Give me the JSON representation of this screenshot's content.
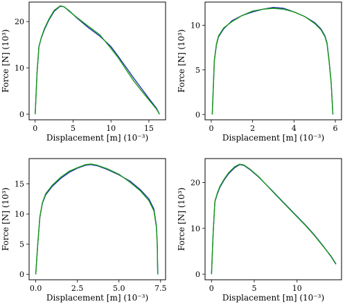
{
  "colors": {
    "series_1": "#1f2fb0",
    "series_2": "#1a9c1a"
  },
  "chart_data": [
    {
      "type": "line",
      "xlabel": "Displacement [m] (10⁻³)",
      "ylabel": "Force [N] (10³)",
      "xlim": [
        -0.8,
        17.2
      ],
      "ylim": [
        -1.2,
        24.2
      ],
      "xticks": [
        0,
        5,
        10,
        15
      ],
      "xtick_labels": [
        "0",
        "5",
        "10",
        "15"
      ],
      "yticks": [
        0,
        10,
        20
      ],
      "ytick_labels": [
        "0",
        "10",
        "20"
      ],
      "series": [
        {
          "values": [
            [
              0,
              0
            ],
            [
              0.25,
              9
            ],
            [
              0.5,
              14.6
            ],
            [
              0.8,
              16.4
            ],
            [
              1.2,
              18.2
            ],
            [
              1.8,
              20.3
            ],
            [
              2.5,
              22.2
            ],
            [
              3.3,
              23.3
            ],
            [
              3.8,
              23.2
            ],
            [
              4.5,
              22.3
            ],
            [
              5.5,
              20.8
            ],
            [
              7,
              18.7
            ],
            [
              8.5,
              16.9
            ],
            [
              10,
              14.6
            ],
            [
              11,
              12.4
            ],
            [
              12,
              10.1
            ],
            [
              13,
              7.8
            ],
            [
              14,
              5.6
            ],
            [
              15,
              3.4
            ],
            [
              16,
              1.3
            ],
            [
              16.4,
              0
            ]
          ]
        },
        {
          "values": [
            [
              0,
              0
            ],
            [
              0.25,
              9
            ],
            [
              0.5,
              14.5
            ],
            [
              0.8,
              16.5
            ],
            [
              1.2,
              18.4
            ],
            [
              1.8,
              20.5
            ],
            [
              2.5,
              22.4
            ],
            [
              3.3,
              23.4
            ],
            [
              3.8,
              23.2
            ],
            [
              4.5,
              22.2
            ],
            [
              5.5,
              20.9
            ],
            [
              7,
              19
            ],
            [
              8.5,
              17.2
            ],
            [
              10,
              14.2
            ],
            [
              11,
              12.1
            ],
            [
              12,
              9.6
            ],
            [
              13,
              7.2
            ],
            [
              14,
              5.1
            ],
            [
              15,
              3.1
            ],
            [
              16,
              1.1
            ],
            [
              16.4,
              0
            ]
          ]
        }
      ]
    },
    {
      "type": "line",
      "xlabel": "Displacement [m] (10⁻³)",
      "ylabel": "Force [N] (10³)",
      "xlim": [
        -0.3,
        6.3
      ],
      "ylim": [
        -0.6,
        12.6
      ],
      "xticks": [
        0,
        2,
        4,
        6
      ],
      "xtick_labels": [
        "0",
        "2",
        "4",
        "6"
      ],
      "yticks": [
        0,
        5,
        10
      ],
      "ytick_labels": [
        "0",
        "5",
        "10"
      ],
      "series": [
        {
          "values": [
            [
              0.05,
              0
            ],
            [
              0.1,
              3
            ],
            [
              0.15,
              6
            ],
            [
              0.25,
              7.8
            ],
            [
              0.35,
              8.7
            ],
            [
              0.6,
              9.6
            ],
            [
              1,
              10.5
            ],
            [
              1.5,
              11.1
            ],
            [
              2,
              11.5
            ],
            [
              2.5,
              11.8
            ],
            [
              3,
              12
            ],
            [
              3.5,
              11.9
            ],
            [
              4,
              11.5
            ],
            [
              4.5,
              11
            ],
            [
              5,
              10.3
            ],
            [
              5.3,
              9.6
            ],
            [
              5.5,
              8.8
            ],
            [
              5.6,
              8
            ],
            [
              5.7,
              6
            ],
            [
              5.8,
              3.5
            ],
            [
              5.88,
              0
            ]
          ]
        },
        {
          "values": [
            [
              0.05,
              0
            ],
            [
              0.1,
              3
            ],
            [
              0.15,
              6.1
            ],
            [
              0.25,
              7.9
            ],
            [
              0.35,
              8.8
            ],
            [
              0.6,
              9.7
            ],
            [
              1,
              10.4
            ],
            [
              1.5,
              11.1
            ],
            [
              2,
              11.6
            ],
            [
              2.5,
              11.8
            ],
            [
              3,
              11.9
            ],
            [
              3.5,
              11.8
            ],
            [
              4,
              11.5
            ],
            [
              4.5,
              11
            ],
            [
              5,
              10.2
            ],
            [
              5.3,
              9.5
            ],
            [
              5.5,
              8.7
            ],
            [
              5.6,
              7.9
            ],
            [
              5.7,
              5.9
            ],
            [
              5.8,
              3.4
            ],
            [
              5.88,
              0
            ]
          ]
        }
      ]
    },
    {
      "type": "line",
      "xlabel": "Displacement [m] (10⁻³)",
      "ylabel": "Force [N] (10³)",
      "xlim": [
        -0.4,
        7.8
      ],
      "ylim": [
        -0.9,
        19.2
      ],
      "xticks": [
        0,
        2.5,
        5,
        7.5
      ],
      "xtick_labels": [
        "0.0",
        "2.5",
        "5.0",
        "7.5"
      ],
      "yticks": [
        0,
        5,
        10,
        15
      ],
      "ytick_labels": [
        "0",
        "5",
        "10",
        "15"
      ],
      "series": [
        {
          "values": [
            [
              0,
              0
            ],
            [
              0.12,
              5
            ],
            [
              0.25,
              9.5
            ],
            [
              0.4,
              11.8
            ],
            [
              0.6,
              13.2
            ],
            [
              1,
              14.6
            ],
            [
              1.5,
              15.9
            ],
            [
              2,
              16.9
            ],
            [
              2.5,
              17.6
            ],
            [
              3,
              18.1
            ],
            [
              3.3,
              18.2
            ],
            [
              3.7,
              18
            ],
            [
              4.3,
              17.4
            ],
            [
              5,
              16.5
            ],
            [
              5.7,
              15.4
            ],
            [
              6.3,
              14
            ],
            [
              6.8,
              12.5
            ],
            [
              7.1,
              10.8
            ],
            [
              7.25,
              8
            ],
            [
              7.3,
              5
            ],
            [
              7.33,
              0
            ]
          ]
        },
        {
          "values": [
            [
              0,
              0
            ],
            [
              0.12,
              5
            ],
            [
              0.25,
              9.6
            ],
            [
              0.4,
              11.9
            ],
            [
              0.6,
              13.4
            ],
            [
              1,
              14.8
            ],
            [
              1.5,
              16.1
            ],
            [
              2,
              17.1
            ],
            [
              2.5,
              17.7
            ],
            [
              3,
              18.2
            ],
            [
              3.3,
              18.3
            ],
            [
              3.7,
              18.1
            ],
            [
              4.3,
              17.5
            ],
            [
              5,
              16.6
            ],
            [
              5.7,
              15.2
            ],
            [
              6.3,
              13.8
            ],
            [
              6.8,
              12.2
            ],
            [
              7.1,
              10.5
            ],
            [
              7.25,
              7.8
            ],
            [
              7.3,
              4.8
            ],
            [
              7.33,
              0
            ]
          ]
        }
      ]
    },
    {
      "type": "line",
      "xlabel": "Displacement [m] (10⁻³)",
      "ylabel": "Force [N] (10³)",
      "xlim": [
        -0.75,
        15.2
      ],
      "ylim": [
        -1.2,
        25.2
      ],
      "xticks": [
        0,
        5,
        10
      ],
      "xtick_labels": [
        "0",
        "5",
        "10"
      ],
      "yticks": [
        0,
        10,
        20
      ],
      "ytick_labels": [
        "0",
        "10",
        "20"
      ],
      "series": [
        {
          "values": [
            [
              0,
              0
            ],
            [
              0.2,
              9
            ],
            [
              0.4,
              15.8
            ],
            [
              0.7,
              17.6
            ],
            [
              1,
              19
            ],
            [
              1.5,
              20.6
            ],
            [
              2,
              21.9
            ],
            [
              2.7,
              23.2
            ],
            [
              3.3,
              23.9
            ],
            [
              3.8,
              23.7
            ],
            [
              4.5,
              22.8
            ],
            [
              5.5,
              21.2
            ],
            [
              7,
              18.4
            ],
            [
              8.5,
              15.5
            ],
            [
              10,
              12.6
            ],
            [
              11,
              10.7
            ],
            [
              12,
              8.6
            ],
            [
              13,
              6.3
            ],
            [
              14,
              3.8
            ],
            [
              14.4,
              2.6
            ],
            [
              14.55,
              2.2
            ]
          ]
        },
        {
          "values": [
            [
              0,
              0
            ],
            [
              0.2,
              9
            ],
            [
              0.4,
              15.9
            ],
            [
              0.7,
              17.8
            ],
            [
              1,
              19.2
            ],
            [
              1.5,
              20.8
            ],
            [
              2,
              22.1
            ],
            [
              2.7,
              23.4
            ],
            [
              3.3,
              24
            ],
            [
              3.8,
              23.8
            ],
            [
              4.5,
              22.9
            ],
            [
              5.5,
              21.3
            ],
            [
              7,
              18.3
            ],
            [
              8.5,
              15.4
            ],
            [
              10,
              12.5
            ],
            [
              11,
              10.6
            ],
            [
              12,
              8.5
            ],
            [
              13,
              6.2
            ],
            [
              14,
              3.9
            ],
            [
              14.4,
              2.7
            ],
            [
              14.55,
              2.3
            ]
          ]
        }
      ]
    }
  ]
}
